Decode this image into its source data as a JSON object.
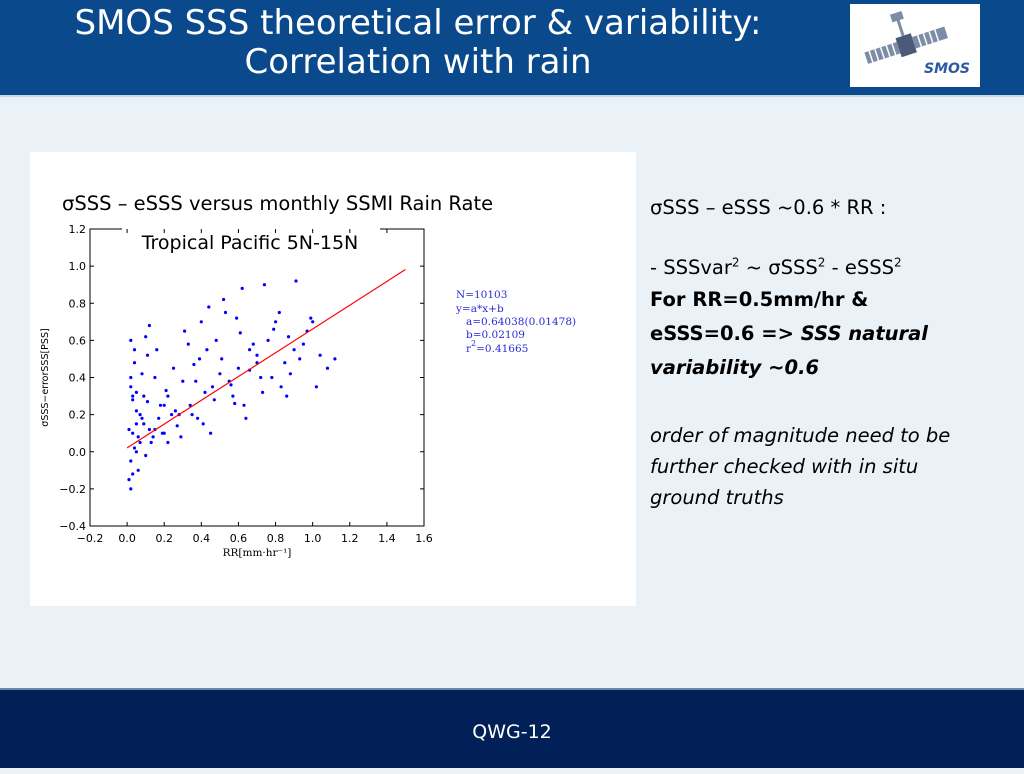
{
  "slide": {
    "title_line1": "SMOS SSS theoretical error & variability:",
    "title_line2": "Correlation with rain",
    "logo_text": "SMOS",
    "footer": "QWG-12"
  },
  "figure": {
    "caption": "σSSS – eSSS versus monthly SSMI Rain Rate"
  },
  "side_text": {
    "line1": "σSSS – eSSS ~0.6 * RR  :",
    "line2a": "- SSSvar",
    "line2a_sup": "2",
    "line2b": " ~ σSSS",
    "line2b_sup": "2",
    "line2c": " - eSSS",
    "line2c_sup": "2",
    "line3": "For RR=0.5mm/hr &",
    "line4a": "eSSS=0.6 ",
    "line4b": "=> SSS natural",
    "line5": "variability  ~0.6",
    "line6": "order of magnitude need to be",
    "line7": "further checked with in situ",
    "line8": "ground truths"
  },
  "chart_data": {
    "type": "scatter",
    "title": "Tropical Pacific 5N-15N",
    "xlabel": "RR[mm·hr⁻¹]",
    "ylabel": "σSSS−errorSSS[PSS]",
    "xlim": [
      -0.2,
      1.6
    ],
    "ylim": [
      -0.4,
      1.2
    ],
    "xticks": [
      "−0.2",
      "0.0",
      "0.2",
      "0.4",
      "0.6",
      "0.8",
      "1.0",
      "1.2",
      "1.4",
      "1.6"
    ],
    "yticks": [
      "−0.4",
      "−0.2",
      "0.0",
      "0.2",
      "0.4",
      "0.6",
      "0.8",
      "1.0",
      "1.2"
    ],
    "grid": false,
    "series": [
      {
        "name": "",
        "kind": "scatter",
        "color": "#0000ff",
        "n": 10103,
        "x": [
          0.02,
          0.03,
          0.01,
          0.05,
          0.04,
          0.07,
          0.02,
          0.09,
          0.12,
          0.06,
          0.03,
          0.15,
          0.08,
          0.11,
          0.18,
          0.02,
          0.14,
          0.21,
          0.05,
          0.25,
          0.1,
          0.28,
          0.16,
          0.3,
          0.04,
          0.33,
          0.19,
          0.36,
          0.22,
          0.4,
          0.26,
          0.43,
          0.12,
          0.46,
          0.31,
          0.5,
          0.35,
          0.53,
          0.39,
          0.57,
          0.44,
          0.6,
          0.48,
          0.63,
          0.52,
          0.66,
          0.55,
          0.7,
          0.59,
          0.73,
          0.62,
          0.76,
          0.66,
          0.8,
          0.7,
          0.83,
          0.74,
          0.87,
          0.78,
          0.9,
          0.82,
          0.93,
          0.86,
          0.97,
          1.0,
          1.04,
          1.08,
          1.12,
          0.02,
          0.01,
          0.06,
          0.03,
          0.09,
          0.13,
          0.17,
          0.2,
          0.24,
          0.27,
          0.08,
          0.34,
          0.38,
          0.42,
          0.47,
          0.51,
          0.56,
          0.61,
          0.68,
          0.72,
          0.79,
          0.85,
          0.91,
          0.95,
          0.03,
          0.07,
          0.11,
          0.05,
          0.02,
          0.15,
          0.22,
          0.29,
          0.04,
          0.41,
          0.58,
          0.88,
          1.02,
          0.99,
          0.64,
          0.45,
          0.37,
          0.1,
          0.05,
          0.2
        ],
        "y": [
          0.35,
          0.1,
          -0.15,
          0.22,
          0.48,
          0.05,
          0.6,
          0.3,
          0.12,
          -0.1,
          0.28,
          0.4,
          0.18,
          0.52,
          0.25,
          -0.2,
          0.08,
          0.33,
          0.15,
          0.45,
          0.62,
          0.2,
          0.55,
          0.38,
          0.02,
          0.58,
          0.1,
          0.47,
          0.3,
          0.7,
          0.22,
          0.55,
          0.68,
          0.35,
          0.65,
          0.42,
          0.2,
          0.75,
          0.5,
          0.3,
          0.78,
          0.45,
          0.6,
          0.25,
          0.82,
          0.55,
          0.38,
          0.48,
          0.72,
          0.32,
          0.88,
          0.6,
          0.44,
          0.7,
          0.52,
          0.35,
          0.9,
          0.62,
          0.4,
          0.55,
          0.75,
          0.5,
          0.3,
          0.65,
          0.7,
          0.52,
          0.45,
          0.5,
          -0.05,
          0.12,
          0.08,
          -0.12,
          0.15,
          0.05,
          0.18,
          0.1,
          0.2,
          0.14,
          0.42,
          0.25,
          0.18,
          0.32,
          0.28,
          0.5,
          0.36,
          0.64,
          0.58,
          0.4,
          0.66,
          0.48,
          0.92,
          0.58,
          0.3,
          0.2,
          0.27,
          0.0,
          0.4,
          0.12,
          0.05,
          0.08,
          0.55,
          0.15,
          0.26,
          0.42,
          0.35,
          0.72,
          0.18,
          0.1,
          0.38,
          -0.02,
          0.32,
          0.25
        ]
      },
      {
        "name": "",
        "kind": "fit-line",
        "color": "#ff0000",
        "slope": 0.64038,
        "intercept": 0.02109,
        "x_range": [
          0.0,
          1.5
        ]
      }
    ],
    "annotations": {
      "n": "N=10103",
      "model": "y=a*x+b",
      "a": "a=0.64038(0.01478)",
      "b": "b=0.02109",
      "r2_label": "r",
      "r2_sup": "2",
      "r2_value": "=0.41665"
    }
  }
}
